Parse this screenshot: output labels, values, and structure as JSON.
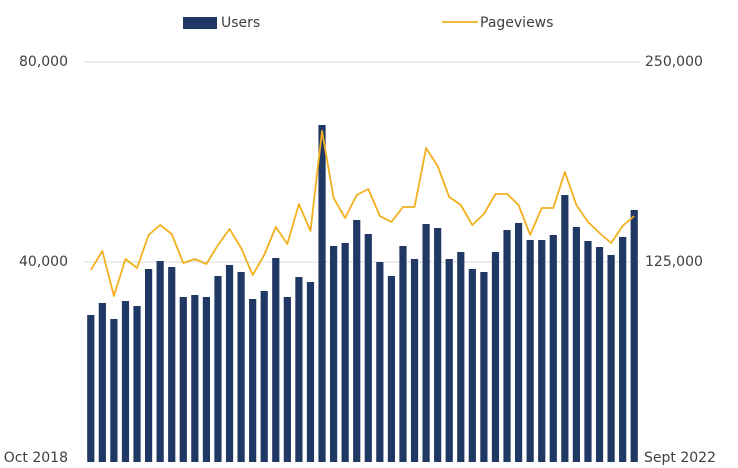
{
  "chart_data": {
    "type": "bar-line",
    "categories": [
      "Oct 2018",
      null,
      null,
      null,
      null,
      null,
      null,
      null,
      null,
      null,
      null,
      null,
      null,
      null,
      null,
      null,
      null,
      null,
      null,
      null,
      null,
      null,
      null,
      null,
      null,
      null,
      null,
      null,
      null,
      null,
      null,
      null,
      null,
      null,
      null,
      null,
      null,
      null,
      null,
      null,
      null,
      null,
      null,
      null,
      null,
      null,
      null,
      "Sept 2022"
    ],
    "series": [
      {
        "name": "Users",
        "type": "bar",
        "color": "#1f3864",
        "values": [
          29400,
          31800,
          28600,
          32200,
          31200,
          38600,
          40200,
          39000,
          33000,
          33400,
          33000,
          37200,
          39400,
          38000,
          32600,
          34200,
          40800,
          33000,
          37000,
          36000,
          67400,
          43200,
          43800,
          48400,
          45600,
          40000,
          37200,
          43200,
          40600,
          47600,
          46800,
          40600,
          42000,
          38600,
          38000,
          42000,
          46400,
          47800,
          44400,
          44400,
          45400,
          53400,
          47000,
          44200,
          43000,
          41400,
          45000,
          50400
        ]
      },
      {
        "name": "Pageviews",
        "type": "line",
        "axis": "y2",
        "color": "#f2b01e",
        "values": [
          120000,
          131875,
          103750,
          126875,
          121250,
          141875,
          148125,
          142500,
          124375,
          126875,
          123750,
          135625,
          145625,
          133750,
          116875,
          129375,
          146875,
          136250,
          161250,
          144375,
          206875,
          165000,
          152500,
          166875,
          170625,
          153750,
          150000,
          159375,
          159375,
          196250,
          185000,
          165625,
          160625,
          148125,
          155000,
          167500,
          167500,
          160625,
          141875,
          158750,
          158750,
          181250,
          160625,
          150000,
          143125,
          136875,
          147500,
          153750
        ]
      }
    ],
    "ylim": [
      0,
      80000
    ],
    "yticks": [
      {
        "value": 40000,
        "label": "40,000"
      },
      {
        "value": 80000,
        "label": "80,000"
      }
    ],
    "y2lim": [
      0,
      250000
    ],
    "y2ticks": [
      {
        "value": 125000,
        "label": "125,000"
      },
      {
        "value": 250000,
        "label": "250,000"
      }
    ],
    "grid": true,
    "legend": "top"
  }
}
